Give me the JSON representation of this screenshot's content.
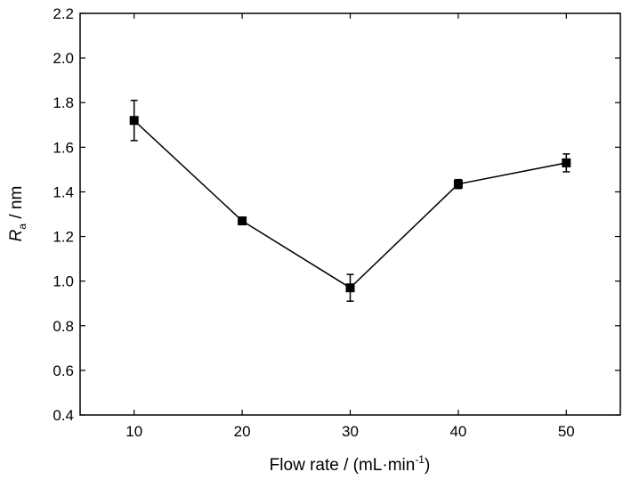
{
  "chart_data": {
    "type": "line",
    "title": "",
    "xlabel": {
      "main": "Flow rate / (mL·min",
      "superscript": "-1",
      "close": ")"
    },
    "ylabel": {
      "symbol": "R",
      "subscript": "a",
      "unit": " / nm"
    },
    "xlim": [
      5,
      55
    ],
    "ylim": [
      0.4,
      2.2
    ],
    "x_ticks": [
      "10",
      "20",
      "30",
      "40",
      "50"
    ],
    "y_ticks": [
      "0.4",
      "0.6",
      "0.8",
      "1.0",
      "1.2",
      "1.4",
      "1.6",
      "1.8",
      "2.0",
      "2.2"
    ],
    "grid": false,
    "series": [
      {
        "x": [
          10,
          20,
          30,
          40,
          50
        ],
        "y": [
          1.72,
          1.27,
          0.97,
          1.435,
          1.53
        ],
        "error": [
          0.09,
          0.01,
          0.06,
          0.02,
          0.04
        ],
        "marker": "square",
        "color": "#000000"
      }
    ]
  }
}
